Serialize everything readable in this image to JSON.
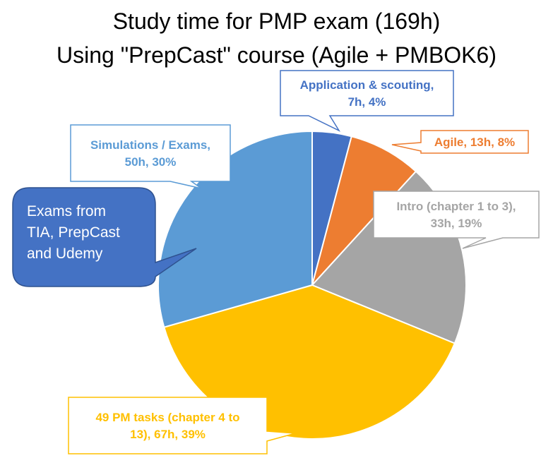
{
  "chart_data": {
    "type": "pie",
    "title": "Study time for PMP exam (169h)",
    "subtitle": "Using \"PrepCast\" course (Agile + PMBOK6)",
    "total_hours": 169,
    "slices": [
      {
        "label_lines": [
          "Application & scouting,",
          "7h, 4%"
        ],
        "hours": 7,
        "percent": 4,
        "color": "#4472C4"
      },
      {
        "label_lines": [
          "Agile, 13h, 8%"
        ],
        "hours": 13,
        "percent": 8,
        "color": "#ED7D31"
      },
      {
        "label_lines": [
          "Intro (chapter 1 to 3),",
          "33h, 19%"
        ],
        "hours": 33,
        "percent": 19,
        "color": "#A5A5A5"
      },
      {
        "label_lines": [
          "49 PM tasks (chapter 4 to",
          "13), 67h, 39%"
        ],
        "hours": 67,
        "percent": 39,
        "color": "#FFC000"
      },
      {
        "label_lines": [
          "Simulations / Exams,",
          "50h, 30%"
        ],
        "hours": 50,
        "percent": 30,
        "color": "#5B9BD5"
      }
    ],
    "annotation": {
      "lines": [
        "Exams from",
        "TIA, PrepCast",
        "and Udemy"
      ],
      "color": "#4472C4"
    }
  }
}
